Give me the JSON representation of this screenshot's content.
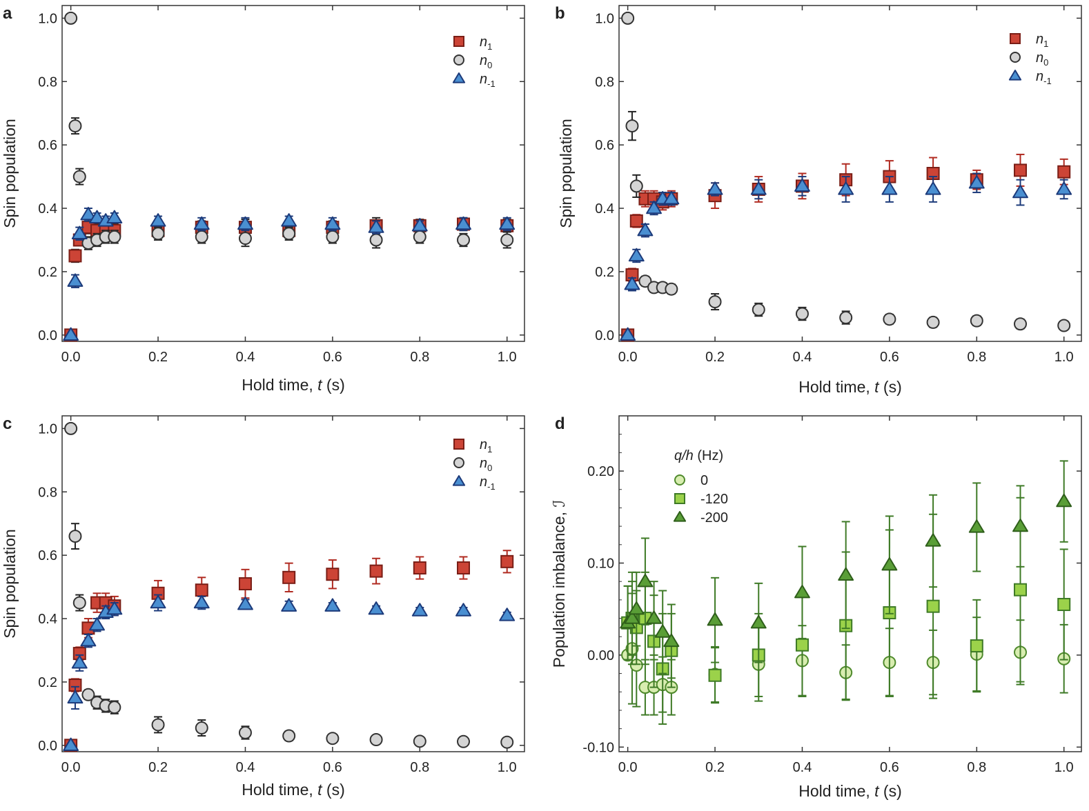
{
  "chart_data": [
    {
      "panel": "a",
      "type": "scatter",
      "xlabel_parts": {
        "pre": "Hold time, ",
        "var": "t",
        "post": " (s)"
      },
      "ylabel": "Spin population",
      "xlim": [
        -0.02,
        1.04
      ],
      "ylim": [
        -0.02,
        1.04
      ],
      "xticks": [
        0.0,
        0.2,
        0.4,
        0.6,
        0.8,
        1.0
      ],
      "xtick_labels": [
        "0.0",
        "0.2",
        "0.4",
        "0.6",
        "0.8",
        "1.0"
      ],
      "yticks": [
        0.0,
        0.2,
        0.4,
        0.6,
        0.8,
        1.0
      ],
      "ytick_labels": [
        "0.0",
        "0.2",
        "0.4",
        "0.6",
        "0.8",
        "1.0"
      ],
      "legend_position": "top-right",
      "series": [
        {
          "name": "n1",
          "legend_base": "n",
          "legend_sub": "1",
          "marker": "square",
          "color": "#cc4436",
          "edge": "#7a1e16",
          "errcolor": "#222222",
          "x": [
            0,
            0.01,
            0.02,
            0.04,
            0.06,
            0.08,
            0.1,
            0.2,
            0.3,
            0.4,
            0.5,
            0.6,
            0.7,
            0.8,
            0.9,
            1.0
          ],
          "y": [
            0.0,
            0.25,
            0.3,
            0.34,
            0.33,
            0.33,
            0.33,
            0.33,
            0.34,
            0.34,
            0.33,
            0.34,
            0.345,
            0.345,
            0.35,
            0.345
          ],
          "err": [
            0.0,
            0.02,
            0.015,
            0.02,
            0.02,
            0.02,
            0.02,
            0.02,
            0.02,
            0.025,
            0.02,
            0.02,
            0.025,
            0.02,
            0.02,
            0.02
          ]
        },
        {
          "name": "n0",
          "legend_base": "n",
          "legend_sub": "0",
          "marker": "circle",
          "color": "#d4d4d4",
          "edge": "#333333",
          "errcolor": "#222222",
          "x": [
            0,
            0.01,
            0.02,
            0.04,
            0.06,
            0.08,
            0.1,
            0.2,
            0.3,
            0.4,
            0.5,
            0.6,
            0.7,
            0.8,
            0.9,
            1.0
          ],
          "y": [
            1.0,
            0.66,
            0.5,
            0.29,
            0.3,
            0.31,
            0.31,
            0.32,
            0.31,
            0.305,
            0.32,
            0.31,
            0.3,
            0.31,
            0.3,
            0.3
          ],
          "err": [
            0.0,
            0.025,
            0.025,
            0.02,
            0.02,
            0.02,
            0.02,
            0.02,
            0.02,
            0.025,
            0.02,
            0.02,
            0.025,
            0.02,
            0.02,
            0.025
          ]
        },
        {
          "name": "n-1",
          "legend_base": "n",
          "legend_sub": "-1",
          "marker": "triangle",
          "color": "#4a8fd1",
          "edge": "#1c3a7a",
          "errcolor": "#1c3a7a",
          "x": [
            0,
            0.01,
            0.02,
            0.04,
            0.06,
            0.08,
            0.1,
            0.2,
            0.3,
            0.4,
            0.5,
            0.6,
            0.7,
            0.8,
            0.9,
            1.0
          ],
          "y": [
            0.0,
            0.17,
            0.32,
            0.38,
            0.37,
            0.36,
            0.37,
            0.36,
            0.35,
            0.35,
            0.36,
            0.35,
            0.34,
            0.345,
            0.35,
            0.35
          ],
          "err": [
            0.0,
            0.02,
            0.02,
            0.02,
            0.015,
            0.015,
            0.015,
            0.015,
            0.02,
            0.02,
            0.015,
            0.02,
            0.02,
            0.015,
            0.02,
            0.02
          ]
        }
      ]
    },
    {
      "panel": "b",
      "type": "scatter",
      "xlabel_parts": {
        "pre": "Hold time, ",
        "var": "t",
        "post": " (s)"
      },
      "ylabel": "Spin population",
      "xlim": [
        -0.02,
        1.04
      ],
      "ylim": [
        -0.02,
        1.04
      ],
      "xticks": [
        0.0,
        0.2,
        0.4,
        0.6,
        0.8,
        1.0
      ],
      "xtick_labels": [
        "0.0",
        "0.2",
        "0.4",
        "0.6",
        "0.8",
        "1.0"
      ],
      "yticks": [
        0.0,
        0.2,
        0.4,
        0.6,
        0.8,
        1.0
      ],
      "ytick_labels": [
        "0.0",
        "0.2",
        "0.4",
        "0.6",
        "0.8",
        "1.0"
      ],
      "legend_position": "top-right",
      "series": [
        {
          "name": "n1",
          "legend_base": "n",
          "legend_sub": "1",
          "marker": "square",
          "color": "#cc4436",
          "edge": "#7a1e16",
          "errcolor": "#b02a20",
          "x": [
            0,
            0.01,
            0.02,
            0.04,
            0.06,
            0.08,
            0.1,
            0.2,
            0.3,
            0.4,
            0.5,
            0.6,
            0.7,
            0.8,
            0.9,
            1.0
          ],
          "y": [
            0.0,
            0.19,
            0.36,
            0.43,
            0.43,
            0.42,
            0.43,
            0.44,
            0.46,
            0.47,
            0.49,
            0.5,
            0.51,
            0.49,
            0.52,
            0.515
          ],
          "err": [
            0.0,
            0.02,
            0.02,
            0.025,
            0.025,
            0.025,
            0.025,
            0.04,
            0.04,
            0.04,
            0.05,
            0.05,
            0.05,
            0.03,
            0.05,
            0.04
          ]
        },
        {
          "name": "n0",
          "legend_base": "n",
          "legend_sub": "0",
          "marker": "circle",
          "color": "#d4d4d4",
          "edge": "#333333",
          "errcolor": "#222222",
          "x": [
            0,
            0.01,
            0.02,
            0.04,
            0.06,
            0.08,
            0.1,
            0.2,
            0.3,
            0.4,
            0.5,
            0.6,
            0.7,
            0.8,
            0.9,
            1.0
          ],
          "y": [
            1.0,
            0.66,
            0.47,
            0.17,
            0.15,
            0.15,
            0.145,
            0.105,
            0.08,
            0.067,
            0.055,
            0.05,
            0.04,
            0.045,
            0.035,
            0.03
          ],
          "err": [
            0.0,
            0.045,
            0.035,
            0.015,
            0.015,
            0.015,
            0.015,
            0.025,
            0.02,
            0.02,
            0.02,
            0.015,
            0.015,
            0.015,
            0.015,
            0.01
          ]
        },
        {
          "name": "n-1",
          "legend_base": "n",
          "legend_sub": "-1",
          "marker": "triangle",
          "color": "#4a8fd1",
          "edge": "#1c3a7a",
          "errcolor": "#1c3a7a",
          "x": [
            0,
            0.01,
            0.02,
            0.04,
            0.06,
            0.08,
            0.1,
            0.2,
            0.3,
            0.4,
            0.5,
            0.6,
            0.7,
            0.8,
            0.9,
            1.0
          ],
          "y": [
            0.0,
            0.16,
            0.25,
            0.33,
            0.4,
            0.43,
            0.43,
            0.46,
            0.46,
            0.47,
            0.46,
            0.46,
            0.46,
            0.48,
            0.45,
            0.46
          ],
          "err": [
            0.0,
            0.02,
            0.02,
            0.02,
            0.02,
            0.02,
            0.02,
            0.02,
            0.03,
            0.03,
            0.04,
            0.04,
            0.04,
            0.03,
            0.04,
            0.03
          ]
        }
      ]
    },
    {
      "panel": "c",
      "type": "scatter",
      "xlabel_parts": {
        "pre": "Hold time, ",
        "var": "t",
        "post": " (s)"
      },
      "ylabel": "Spin population",
      "xlim": [
        -0.02,
        1.04
      ],
      "ylim": [
        -0.02,
        1.04
      ],
      "xticks": [
        0.0,
        0.2,
        0.4,
        0.6,
        0.8,
        1.0
      ],
      "xtick_labels": [
        "0.0",
        "0.2",
        "0.4",
        "0.6",
        "0.8",
        "1.0"
      ],
      "yticks": [
        0.0,
        0.2,
        0.4,
        0.6,
        0.8,
        1.0
      ],
      "ytick_labels": [
        "0.0",
        "0.2",
        "0.4",
        "0.6",
        "0.8",
        "1.0"
      ],
      "legend_position": "top-right",
      "series": [
        {
          "name": "n1",
          "legend_base": "n",
          "legend_sub": "1",
          "marker": "square",
          "color": "#cc4436",
          "edge": "#7a1e16",
          "errcolor": "#b02a20",
          "x": [
            0,
            0.01,
            0.02,
            0.04,
            0.06,
            0.08,
            0.1,
            0.2,
            0.3,
            0.4,
            0.5,
            0.6,
            0.7,
            0.8,
            0.9,
            1.0
          ],
          "y": [
            0.0,
            0.19,
            0.29,
            0.37,
            0.45,
            0.45,
            0.44,
            0.48,
            0.49,
            0.51,
            0.53,
            0.54,
            0.55,
            0.56,
            0.56,
            0.58
          ],
          "err": [
            0.0,
            0.02,
            0.02,
            0.03,
            0.03,
            0.03,
            0.03,
            0.04,
            0.04,
            0.045,
            0.045,
            0.045,
            0.04,
            0.035,
            0.035,
            0.035
          ]
        },
        {
          "name": "n0",
          "legend_base": "n",
          "legend_sub": "0",
          "marker": "circle",
          "color": "#d4d4d4",
          "edge": "#333333",
          "errcolor": "#222222",
          "x": [
            0,
            0.01,
            0.02,
            0.04,
            0.06,
            0.08,
            0.1,
            0.2,
            0.3,
            0.4,
            0.5,
            0.6,
            0.7,
            0.8,
            0.9,
            1.0
          ],
          "y": [
            1.0,
            0.66,
            0.45,
            0.16,
            0.135,
            0.125,
            0.12,
            0.065,
            0.055,
            0.04,
            0.03,
            0.022,
            0.018,
            0.013,
            0.012,
            0.01
          ],
          "err": [
            0.0,
            0.04,
            0.025,
            0.015,
            0.02,
            0.02,
            0.02,
            0.025,
            0.025,
            0.02,
            0.015,
            0.01,
            0.01,
            0.01,
            0.008,
            0.008
          ]
        },
        {
          "name": "n-1",
          "legend_base": "n",
          "legend_sub": "-1",
          "marker": "triangle",
          "color": "#4a8fd1",
          "edge": "#1c3a7a",
          "errcolor": "#1c3a7a",
          "x": [
            0,
            0.01,
            0.02,
            0.04,
            0.06,
            0.08,
            0.1,
            0.2,
            0.3,
            0.4,
            0.5,
            0.6,
            0.7,
            0.8,
            0.9,
            1.0
          ],
          "y": [
            0.0,
            0.15,
            0.26,
            0.33,
            0.38,
            0.42,
            0.43,
            0.45,
            0.45,
            0.445,
            0.44,
            0.44,
            0.43,
            0.425,
            0.425,
            0.41
          ],
          "err": [
            0.0,
            0.035,
            0.025,
            0.02,
            0.02,
            0.02,
            0.02,
            0.025,
            0.02,
            0.015,
            0.015,
            0.01,
            0.01,
            0.01,
            0.01,
            0.01
          ]
        }
      ]
    },
    {
      "panel": "d",
      "type": "scatter",
      "xlabel_parts": {
        "pre": "Hold time, ",
        "var": "t",
        "post": " (s)"
      },
      "ylabel": "Population imbalance, ℐ",
      "xlim": [
        -0.02,
        1.04
      ],
      "ylim": [
        -0.105,
        0.26
      ],
      "xticks": [
        0.0,
        0.2,
        0.4,
        0.6,
        0.8,
        1.0
      ],
      "xtick_labels": [
        "0.0",
        "0.2",
        "0.4",
        "0.6",
        "0.8",
        "1.0"
      ],
      "yticks": [
        -0.1,
        0.0,
        0.1,
        0.2
      ],
      "ytick_labels": [
        "-0.10",
        "0.00",
        "0.10",
        "0.20"
      ],
      "legend_position": "top-left",
      "legend_title_parts": {
        "var": "q/h",
        "post": " (Hz)"
      },
      "series": [
        {
          "name": "0",
          "legend_base": "0",
          "legend_sub": "",
          "marker": "circle",
          "color": "#d8edb0",
          "edge": "#4f8a2c",
          "errcolor": "#3e7a26",
          "x": [
            0,
            0.01,
            0.02,
            0.04,
            0.06,
            0.08,
            0.1,
            0.2,
            0.3,
            0.4,
            0.5,
            0.6,
            0.7,
            0.8,
            0.9,
            1.0
          ],
          "y": [
            0.0,
            0.007,
            -0.011,
            -0.035,
            -0.035,
            -0.032,
            -0.035,
            -0.021,
            -0.01,
            -0.006,
            -0.019,
            -0.008,
            -0.008,
            0.001,
            0.003,
            -0.004
          ],
          "err": [
            0.0,
            0.06,
            0.045,
            0.03,
            0.03,
            0.03,
            0.03,
            0.03,
            0.04,
            0.038,
            0.03,
            0.037,
            0.035,
            0.04,
            0.035,
            0.037
          ]
        },
        {
          "name": "-120",
          "legend_base": "-120",
          "legend_sub": "",
          "marker": "square",
          "color": "#9bd24a",
          "edge": "#3e7a26",
          "errcolor": "#3e7a26",
          "x": [
            0,
            0.01,
            0.02,
            0.04,
            0.06,
            0.08,
            0.1,
            0.2,
            0.3,
            0.4,
            0.5,
            0.6,
            0.7,
            0.8,
            0.9,
            1.0
          ],
          "y": [
            0.035,
            0.04,
            0.03,
            0.04,
            0.015,
            -0.015,
            0.005,
            -0.022,
            0.0,
            0.011,
            0.032,
            0.046,
            0.053,
            0.01,
            0.071,
            0.055
          ],
          "err": [
            0.04,
            0.05,
            0.04,
            0.05,
            0.05,
            0.06,
            0.04,
            0.03,
            0.045,
            0.056,
            0.08,
            0.09,
            0.1,
            0.05,
            0.1,
            0.06
          ]
        },
        {
          "name": "-200",
          "legend_base": "-200",
          "legend_sub": "",
          "marker": "triangle",
          "color": "#5a9e37",
          "edge": "#2e5e1a",
          "errcolor": "#3e7a26",
          "x": [
            0,
            0.01,
            0.02,
            0.04,
            0.06,
            0.08,
            0.1,
            0.2,
            0.3,
            0.4,
            0.5,
            0.6,
            0.7,
            0.8,
            0.9,
            1.0
          ],
          "y": [
            0.035,
            0.04,
            0.05,
            0.08,
            0.04,
            0.025,
            0.015,
            0.038,
            0.035,
            0.068,
            0.087,
            0.098,
            0.124,
            0.139,
            0.14,
            0.167
          ],
          "err": [
            0.04,
            0.04,
            0.04,
            0.047,
            0.04,
            0.045,
            0.04,
            0.046,
            0.043,
            0.05,
            0.058,
            0.053,
            0.05,
            0.048,
            0.044,
            0.044
          ]
        }
      ]
    }
  ]
}
